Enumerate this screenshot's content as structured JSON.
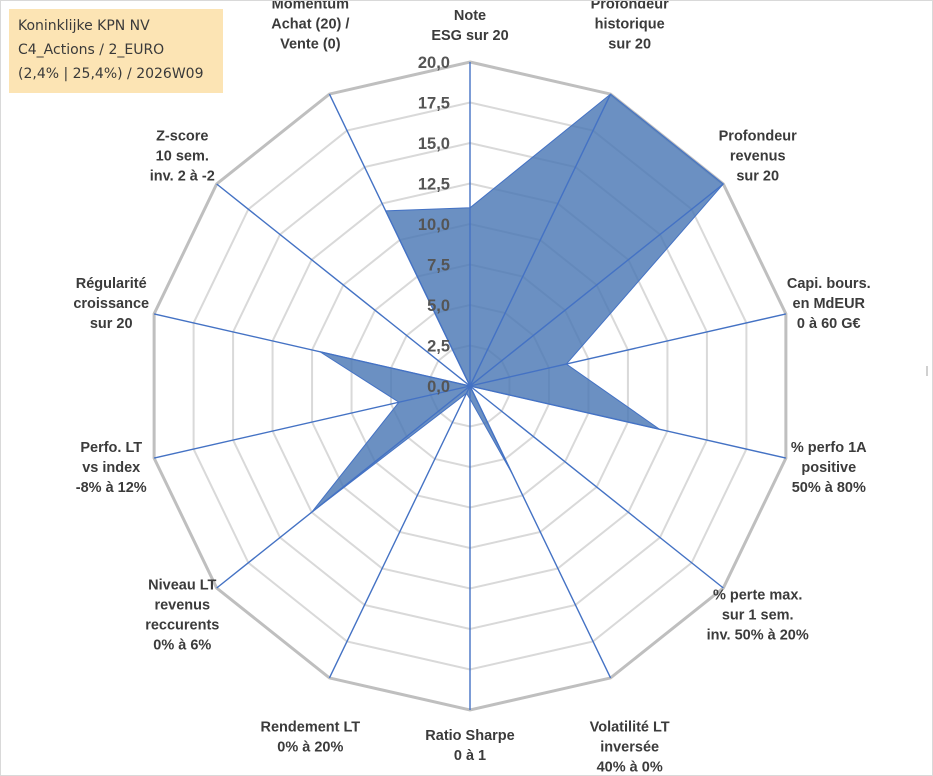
{
  "info_box": {
    "line1": "Koninklijke KPN NV",
    "line2": "C4_Actions / 2_EURO",
    "line3": "(2,4% | 25,4%) / 2026W09"
  },
  "colors": {
    "fill": "#4a78b4",
    "spoke": "#4472c4",
    "grid_outer": "#bfbfbf",
    "grid_inner": "#d9d9d9",
    "info_bg": "#fce4b4"
  },
  "chart_data": {
    "type": "radar",
    "title": "",
    "rmin": 0,
    "rmax": 20,
    "ticks": [
      "0,0",
      "2,5",
      "5,0",
      "7,5",
      "10,0",
      "12,5",
      "15,0",
      "17,5",
      "20,0"
    ],
    "tick_values": [
      0,
      2.5,
      5,
      7.5,
      10,
      12.5,
      15,
      17.5,
      20
    ],
    "categories": [
      [
        "Note",
        "ESG sur 20"
      ],
      [
        "Profondeur",
        "historique",
        "sur 20"
      ],
      [
        "Profondeur",
        "revenus",
        "sur 20"
      ],
      [
        "Capi. bours.",
        "en MdEUR",
        "0 à 60 G€"
      ],
      [
        "% perfo 1A",
        "positive",
        "50% à 80%"
      ],
      [
        "% perte max.",
        "sur 1 sem.",
        "inv. 50% à 20%"
      ],
      [
        "Volatilité LT",
        "inversée",
        "40% à 0%"
      ],
      [
        "Ratio Sharpe",
        "0 à 1"
      ],
      [
        "Rendement LT",
        "0% à 20%"
      ],
      [
        "Niveau LT",
        "revenus",
        "reccurents",
        "0% à 6%"
      ],
      [
        "Perfo. LT",
        "vs index",
        "-8% à 12%"
      ],
      [
        "Régularité",
        "croissance",
        "sur 20"
      ],
      [
        "Z-score",
        "10 sem.",
        "inv. 2 à -2"
      ],
      [
        "Momentum",
        "Achat (20) /",
        "Vente (0)"
      ]
    ],
    "series": [
      {
        "name": "Koninklijke KPN NV",
        "values": [
          11.0,
          20.0,
          20.0,
          6.1,
          12.0,
          0.0,
          6.0,
          0.8,
          0.5,
          12.5,
          4.5,
          9.5,
          0.0,
          12.0
        ]
      }
    ]
  }
}
